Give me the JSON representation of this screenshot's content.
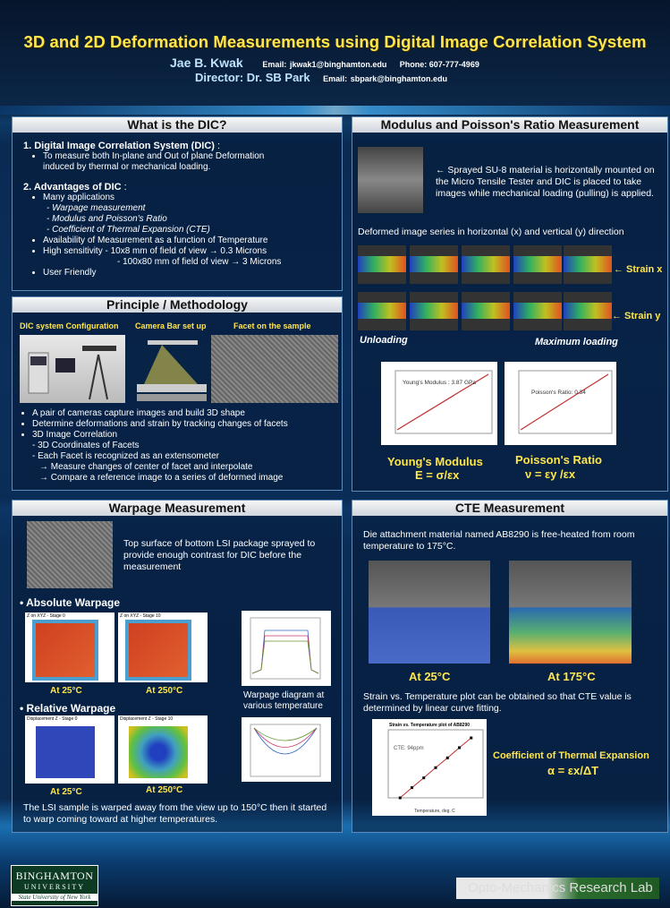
{
  "header": {
    "title": "3D and 2D Deformation Measurements using Digital Image Correlation System",
    "author": "Jae B. Kwak",
    "email_label": "Email:",
    "email": "jkwak1@binghamton.edu",
    "phone": "Phone: 607-777-4969",
    "director": "Director: Dr. SB Park",
    "director_email_label": "Email:",
    "director_email": "sbpark@binghamton.edu"
  },
  "dic": {
    "heading": "What is the DIC?",
    "s1_title": "1. Digital Image Correlation System (DIC)",
    "s1_colon": " :",
    "s1_b1": "To measure both In-plane and Out of plane Deformation induced by thermal or mechanical loading.",
    "s2_title": "2. Advantages of DIC",
    "s2_colon": " :",
    "b1": "Many applications",
    "b1a": "- Warpage measurement",
    "b1b": "- Modulus and Poisson's Ratio",
    "b1c": "- Coefficient of Thermal Expansion (CTE)",
    "b2": "Availability of Measurement as a function of Temperature",
    "b3": "High sensitivity  - 10x8 mm of field of view → 0.3 Microns",
    "b3b": "- 100x80 mm of field of view → 3 Microns",
    "b4": "User Friendly"
  },
  "principle": {
    "heading": "Principle / Methodology",
    "cap1": "DIC system Configuration",
    "cap2": "Camera Bar set up",
    "cap3": "Facet on the sample",
    "b1": "A pair of cameras capture images and build 3D shape",
    "b2": "Determine deformations and strain by tracking changes of facets",
    "b3": "3D Image Correlation",
    "b3a": "- 3D Coordinates of Facets",
    "b3b": "- Each Facet is recognized as an extensometer",
    "b3c": "→ Measure changes of center of facet and interpolate",
    "b3d": "→ Compare a reference image to a series of deformed image"
  },
  "modulus": {
    "heading": "Modulus and Poisson's Ratio Measurement",
    "intro": "← Sprayed SU-8 material is horizontally mounted on the Micro Tensile Tester and DIC is placed to take images while mechanical loading (pulling) is applied.",
    "series": "Deformed image series in horizontal (x) and vertical (y) direction",
    "strain_x": "← Strain x",
    "strain_y": "← Strain y",
    "unloading": "Unloading",
    "max_loading": "Maximum loading",
    "ym_chart_label": "Young's Modulus : 3.87 GPa",
    "pr_chart_label": "Poisson's Ratio: 0.34",
    "ym_title": "Young's Modulus",
    "ym_eq": "E = σ/εx",
    "pr_title": "Poisson's Ratio",
    "pr_eq": "ν = εy /εx"
  },
  "warpage": {
    "heading": "Warpage Measurement",
    "desc": "Top surface of bottom LSI package sprayed to provide enough contrast for DIC before the measurement",
    "absolute": "• Absolute Warpage",
    "relative": "• Relative Warpage",
    "at25": "At 25°C",
    "at250": "At 250°C",
    "at25b": "At 25°C",
    "at250b": "At 250°C",
    "diagram": "Warpage diagram at various temperature",
    "map1": "Z on XYZ - Stage 0",
    "map2": "Z on XYZ - Stage 10",
    "map3": "Displacement Z - Stage 0",
    "map4": "Displacement Z - Stage 10",
    "conclusion": "The LSI sample is warped away from the view up to 150°C then it started to warp coming toward at higher temperatures."
  },
  "cte": {
    "heading": "CTE Measurement",
    "intro": "Die attachment material named AB8290 is free-heated from room temperature to 175°C.",
    "at25": "At 25°C",
    "at175": "At 175°C",
    "desc": "Strain vs. Temperature plot can be obtained so that CTE value is determined by linear curve fitting.",
    "chart_title": "Strain vs. Temperature plot of AB8290",
    "cte_label": "CTE: 94ppm",
    "xlabel": "Temperature, deg. C",
    "coeff": "Coefficient of Thermal Expansion",
    "coeff_eq": "α = εx/ΔT"
  },
  "footer": {
    "uni1": "BINGHAMTON",
    "uni2": "UNIVERSITY",
    "uni3": "State University of New York",
    "lab": "Opto-Mechanics Research Lab"
  },
  "chart_data": [
    {
      "type": "line",
      "title": "",
      "xlabel": "",
      "ylabel": "",
      "x": [
        0,
        1,
        2,
        3,
        4,
        5
      ],
      "values": [
        0,
        1,
        2,
        3,
        4,
        5
      ]
    },
    {
      "type": "scatter",
      "title": "Strain vs. Temperature plot of AB8290",
      "xlabel": "Temperature, deg. C",
      "ylabel": "",
      "x": [
        25,
        50,
        75,
        100,
        125,
        150,
        175
      ],
      "values": [
        0.0,
        0.0024,
        0.0047,
        0.0071,
        0.0094,
        0.0118,
        0.0141
      ],
      "xlim": [
        0,
        200
      ],
      "ylim": [
        0,
        0.016
      ]
    }
  ],
  "colors": {
    "title": "#ffe64d",
    "panel_border": "#5d8ab8",
    "email": "#5fb8ff"
  }
}
